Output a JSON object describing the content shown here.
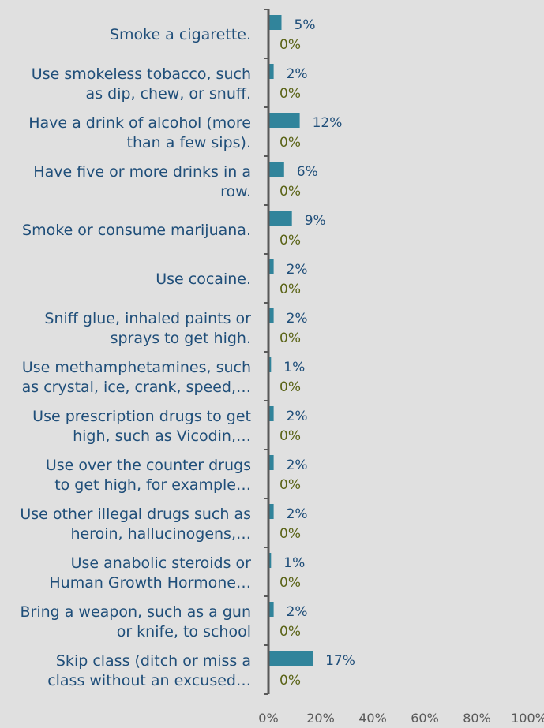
{
  "chart_data": {
    "type": "bar",
    "orientation": "horizontal",
    "categories": [
      [
        "Smoke a cigarette."
      ],
      [
        "Use smokeless tobacco, such",
        "as dip, chew, or snuff."
      ],
      [
        "Have a drink of alcohol (more",
        "than a few sips)."
      ],
      [
        "Have five or more drinks in a",
        "row."
      ],
      [
        "Smoke or consume marijuana."
      ],
      [
        "Use cocaine."
      ],
      [
        "Sniff glue, inhaled paints or",
        "sprays to get high."
      ],
      [
        "Use methamphetamines, such",
        "as crystal, ice, crank, speed,…"
      ],
      [
        "Use prescription drugs to get",
        "high, such as Vicodin,…"
      ],
      [
        "Use over the counter drugs",
        "to get high, for example…"
      ],
      [
        "Use other illegal drugs such as",
        "heroin, hallucinogens,…"
      ],
      [
        "Use anabolic steroids or",
        "Human Growth Hormone…"
      ],
      [
        "Bring a weapon, such as a gun",
        "or knife, to school"
      ],
      [
        "Skip class (ditch or miss a",
        "class without an excused…"
      ]
    ],
    "series": [
      {
        "values": [
          5,
          2,
          12,
          6,
          9,
          2,
          2,
          1,
          2,
          2,
          2,
          1,
          2,
          17
        ],
        "labels": [
          "5%",
          "2%",
          "12%",
          "6%",
          "9%",
          "2%",
          "2%",
          "1%",
          "2%",
          "2%",
          "2%",
          "1%",
          "2%",
          "17%"
        ],
        "color": "#31849b"
      },
      {
        "values": [
          0,
          0,
          0,
          0,
          0,
          0,
          0,
          0,
          0,
          0,
          0,
          0,
          0,
          0
        ],
        "labels": [
          "0%",
          "0%",
          "0%",
          "0%",
          "0%",
          "0%",
          "0%",
          "0%",
          "0%",
          "0%",
          "0%",
          "0%",
          "0%",
          "0%"
        ],
        "color": "#9bbb59"
      }
    ],
    "xlim": [
      0,
      100
    ],
    "x_ticks": [
      "0%",
      "20%",
      "40%",
      "60%",
      "80%",
      "100%"
    ],
    "grid": false,
    "legend": "none",
    "colors": {
      "background": "#e0e0e0",
      "axis": "#595959",
      "label": "#1f4e79"
    }
  }
}
